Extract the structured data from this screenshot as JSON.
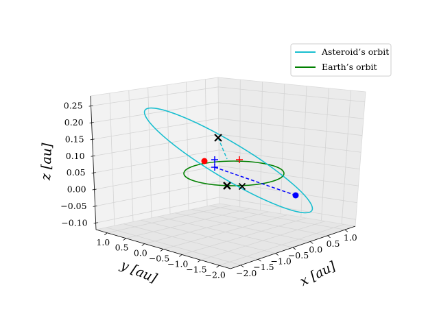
{
  "chart_data": {
    "type": "line3d",
    "xlabel": "x [au]",
    "ylabel": "y [au]",
    "zlabel": "z [au]",
    "x_ticks": [
      "−2.0",
      "−1.5",
      "−1.0",
      "−0.5",
      "0.0",
      "0.5",
      "1.0"
    ],
    "y_ticks": [
      "1.0",
      "0.5",
      "0.0",
      "−0.5",
      "−1.0",
      "−1.5",
      "−2.0"
    ],
    "z_ticks": [
      "−0.10",
      "−0.05",
      "0.00",
      "0.05",
      "0.10",
      "0.15",
      "0.20",
      "0.25"
    ],
    "xlim": [
      -2.3,
      1.3
    ],
    "ylim": [
      -2.3,
      1.3
    ],
    "zlim": [
      -0.12,
      0.28
    ],
    "grid": true,
    "legend_position": "top-right",
    "legend": [
      {
        "label": "Asteroid’s orbit",
        "color": "#17becf"
      },
      {
        "label": "Earth’s orbit",
        "color": "#008000"
      }
    ],
    "series": [
      {
        "name": "Asteroid’s orbit",
        "color": "#17becf",
        "orbit": {
          "a": 1.4,
          "e": 0.5,
          "inclination_deg": 10
        }
      },
      {
        "name": "Earth’s orbit",
        "color": "#008000",
        "orbit": {
          "a": 1.0,
          "e": 0.0,
          "inclination_deg": 0
        }
      }
    ],
    "markers": [
      {
        "type": "x",
        "color": "#000000",
        "x": -0.69,
        "y": 0.0,
        "z": 0.12
      },
      {
        "type": "x",
        "color": "#000000",
        "x": -0.69,
        "y": 0.0,
        "z": -0.1
      },
      {
        "type": "x",
        "color": "#000000",
        "x": -0.35,
        "y": -0.35,
        "z": -0.1
      },
      {
        "type": "plus",
        "color": "#ff0000",
        "x": 0.1,
        "y": -0.3,
        "z": 0.045
      },
      {
        "type": "plus",
        "color": "#0000ff",
        "x": 0.6,
        "y": 0.4,
        "z": 0.0
      },
      {
        "type": "plus",
        "color": "#0000ff",
        "x": 0.6,
        "y": 0.4,
        "z": -0.045
      },
      {
        "type": "dot",
        "color": "#ff0000",
        "x": 1.0,
        "y": 0.18,
        "z": 0.0
      },
      {
        "type": "dot",
        "color": "#0000ff",
        "x": -1.63,
        "y": -0.7,
        "z": -0.01
      }
    ],
    "dashed_lines": [
      {
        "color": "#17becf",
        "from": [
          -0.69,
          0.0,
          0.12
        ],
        "to": [
          0.6,
          0.4,
          0.0
        ]
      },
      {
        "color": "#0000ff",
        "from": [
          0.6,
          0.4,
          0.0
        ],
        "to": [
          -1.63,
          -0.7,
          -0.01
        ]
      }
    ]
  }
}
